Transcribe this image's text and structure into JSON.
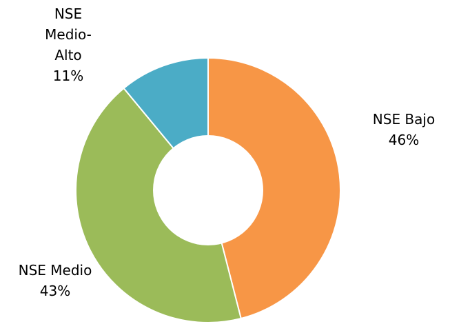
{
  "chart_data": {
    "type": "pie",
    "variant": "donut",
    "title": "",
    "slices": [
      {
        "name": "NSE Bajo",
        "value": 46,
        "value_label": "46%",
        "color": "#F79646",
        "label_lines": [
          "NSE Bajo",
          "46%"
        ]
      },
      {
        "name": "NSE Medio",
        "value": 43,
        "value_label": "43%",
        "color": "#9BBB59",
        "label_lines": [
          "NSE Medio",
          "43%"
        ]
      },
      {
        "name": "NSE Medio-Alto",
        "value": 11,
        "value_label": "11%",
        "color": "#4BACC6",
        "label_lines": [
          "NSE",
          "Medio-",
          "Alto",
          "11%"
        ]
      }
    ],
    "start": "12 o'clock",
    "direction": "clockwise",
    "legend": "none",
    "separator_color": "#FFFFFF"
  }
}
